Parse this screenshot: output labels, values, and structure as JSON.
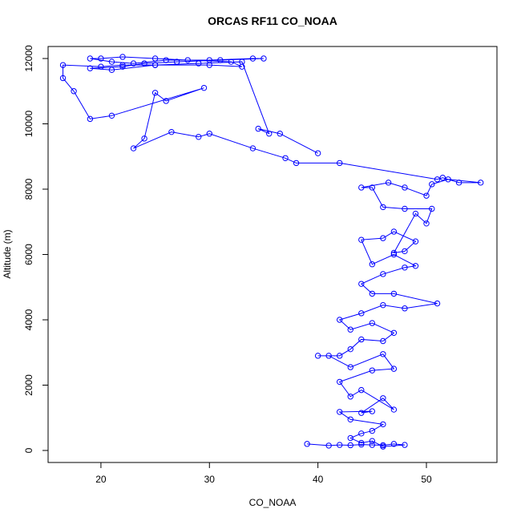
{
  "chart_data": {
    "type": "line",
    "title": "ORCAS RF11 CO_NOAA",
    "x_label": "CO_NOAA",
    "y_label": "Altitude (m)",
    "color": "#0000ff",
    "x": [
      39,
      41,
      42,
      43,
      44,
      45,
      46,
      47,
      48,
      46,
      45,
      44,
      43,
      44,
      45,
      46,
      43,
      42,
      45,
      44,
      46,
      47,
      44,
      43,
      42,
      45,
      47,
      46,
      43,
      41,
      40,
      42,
      43,
      44,
      46,
      47,
      45,
      43,
      42,
      44,
      46,
      48,
      51,
      47,
      45,
      44,
      46,
      48,
      49,
      47,
      45,
      44,
      46,
      47,
      49,
      48,
      47,
      49,
      50,
      50.5,
      48,
      46,
      45,
      44,
      46.5,
      48,
      50,
      50.5,
      52,
      55,
      53,
      51.5,
      51,
      42,
      38,
      37,
      34,
      30,
      29,
      26.5,
      23,
      24,
      25,
      26,
      29.5,
      21,
      19,
      17.5,
      16.5,
      16.5,
      20,
      22,
      25,
      30,
      33,
      32,
      28,
      25,
      22,
      20,
      19,
      21,
      23,
      26,
      30,
      34,
      35,
      31,
      27,
      24,
      22,
      19,
      21,
      25,
      29,
      33,
      35.5,
      34.5,
      36.5,
      40
    ],
    "values": [
      200,
      150,
      170,
      160,
      180,
      170,
      160,
      200,
      170,
      120,
      290,
      230,
      380,
      520,
      600,
      800,
      950,
      1180,
      1200,
      1150,
      1600,
      1250,
      1850,
      1650,
      2100,
      2450,
      2500,
      2950,
      2550,
      2900,
      2900,
      2900,
      3100,
      3400,
      3350,
      3600,
      3900,
      3700,
      4000,
      4200,
      4450,
      4350,
      4500,
      4800,
      4800,
      5100,
      5400,
      5600,
      5650,
      6000,
      5700,
      6450,
      6500,
      6700,
      6400,
      6100,
      6050,
      7250,
      6950,
      7400,
      7400,
      7450,
      8050,
      8050,
      8200,
      8050,
      7800,
      8150,
      8300,
      8200,
      8200,
      8350,
      8300,
      8800,
      8800,
      8950,
      9250,
      9700,
      9600,
      9750,
      9250,
      9550,
      10950,
      10700,
      11100,
      10250,
      10150,
      11000,
      11400,
      11800,
      11750,
      11800,
      11800,
      11800,
      11750,
      11900,
      11950,
      12000,
      12050,
      12000,
      12000,
      11900,
      11850,
      11950,
      11950,
      12000,
      12000,
      11950,
      11900,
      11850,
      11750,
      11700,
      11650,
      11800,
      11850,
      11900,
      9700,
      9850,
      9700,
      9100
    ],
    "xlim": [
      15.13,
      56.5
    ],
    "ylim": [
      -368,
      12368
    ],
    "xticks": [
      20,
      30,
      40,
      50
    ],
    "yticks": [
      0,
      2000,
      4000,
      6000,
      8000,
      10000,
      12000
    ]
  }
}
